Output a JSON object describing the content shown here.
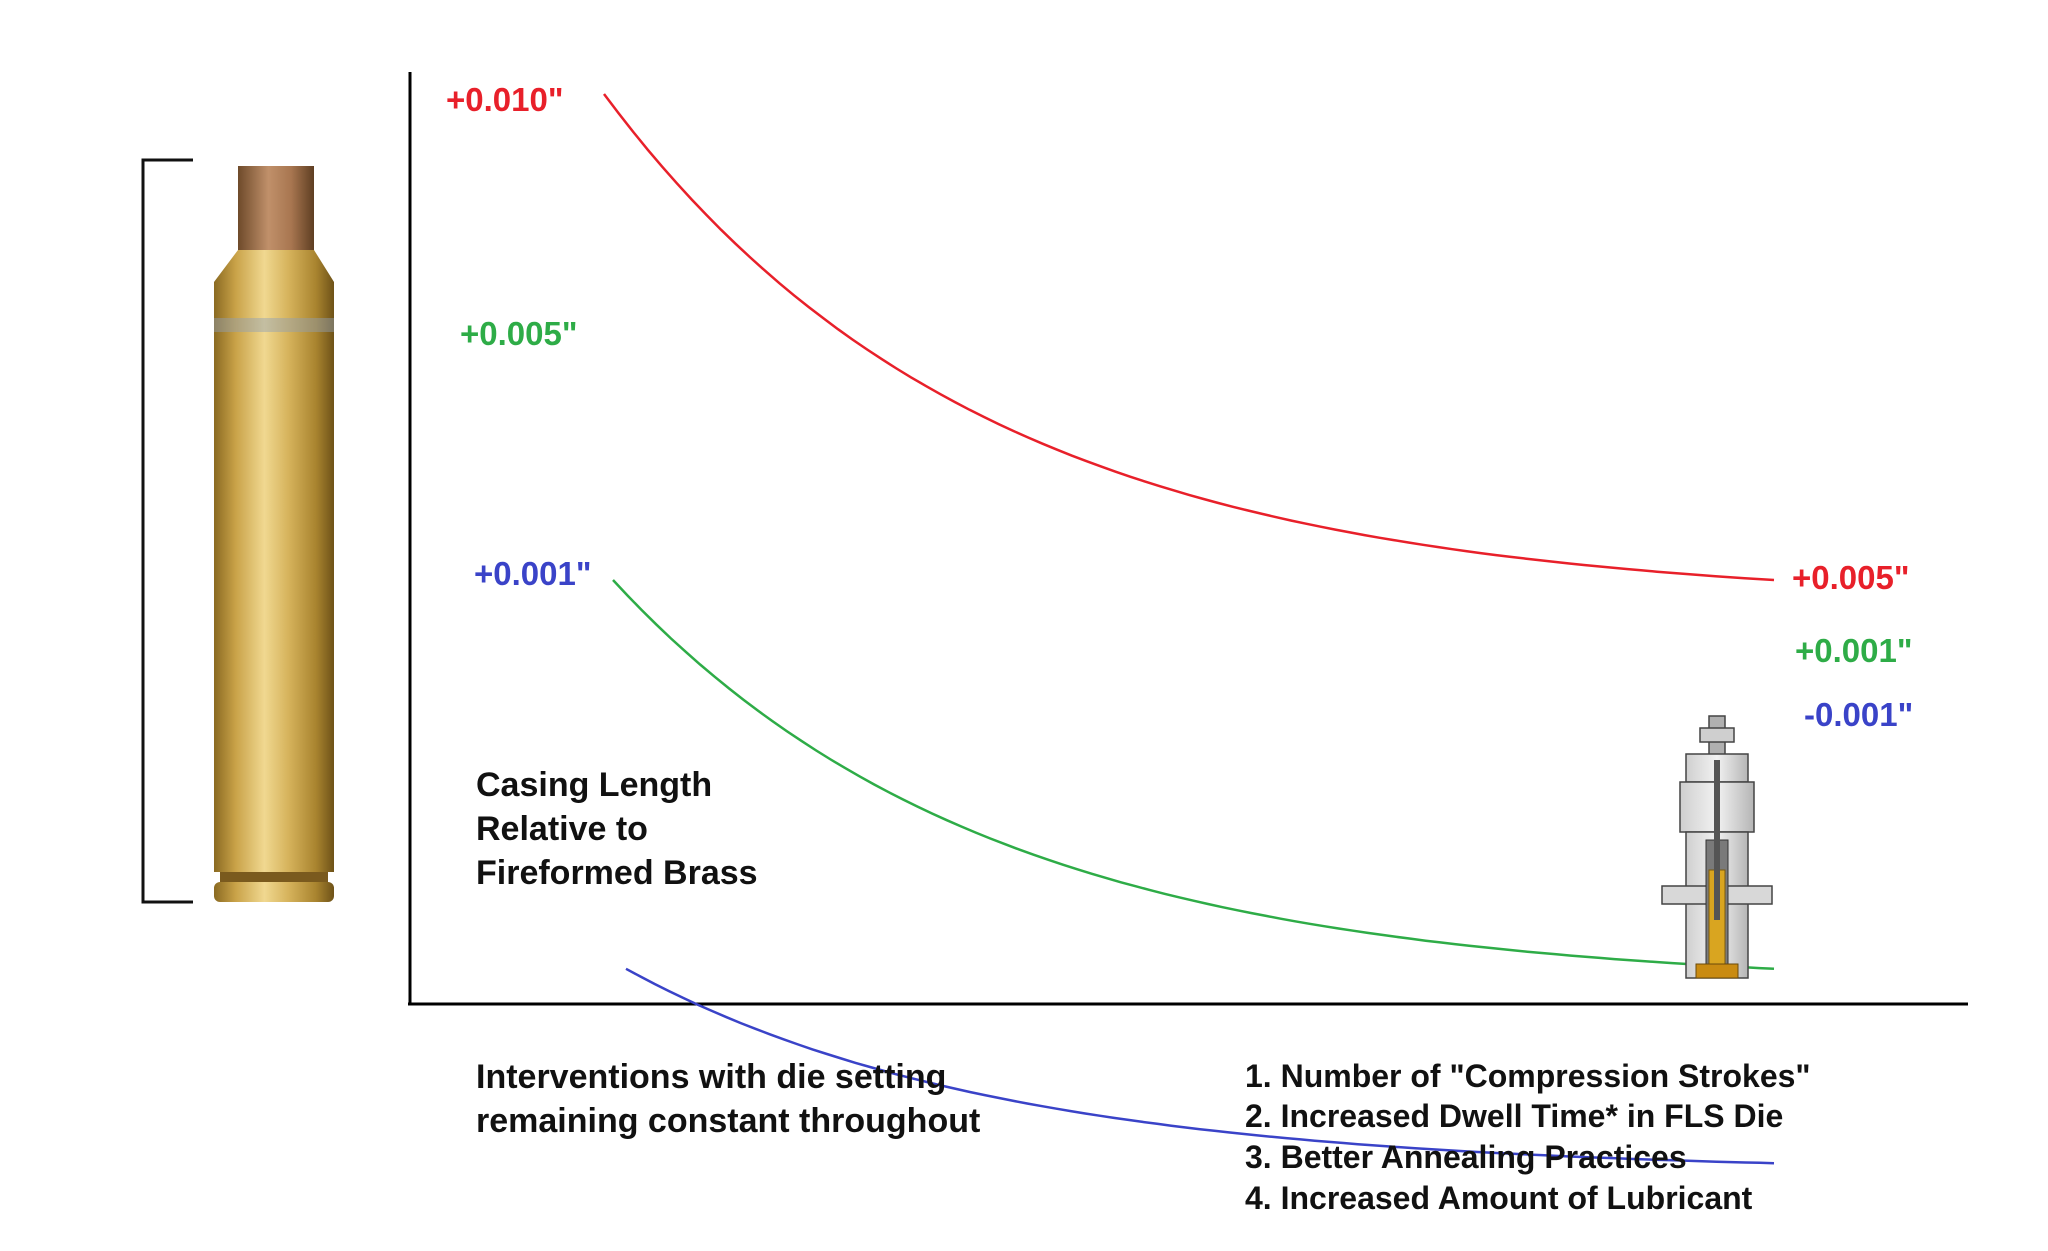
{
  "chart_data": {
    "type": "line",
    "ylabel_lines": [
      "Casing Length",
      "Relative to",
      "Fireformed Brass"
    ],
    "xlabel_lines": [
      "Interventions with die setting",
      "remaining constant throughout"
    ],
    "interventions": [
      "1. Number of \"Compression Strokes\"",
      "2. Increased Dwell Time* in FLS Die",
      "3. Better Annealing Practices",
      "4. Increased Amount of Lubricant"
    ],
    "series": [
      {
        "start_label": "+0.010\"",
        "end_label": "+0.005\"",
        "values": [
          0.01,
          0.005
        ],
        "color": "#e8202a"
      },
      {
        "start_label": "+0.005\"",
        "end_label": "+0.001\"",
        "values": [
          0.005,
          0.001
        ],
        "color": "#2eac47"
      },
      {
        "start_label": "+0.001\"",
        "end_label": "-0.001\"",
        "values": [
          0.001,
          -0.001
        ],
        "color": "#3a43c8"
      }
    ],
    "images": [
      {
        "name": "brass-casing",
        "color": "#c9a248"
      },
      {
        "name": "resizing-die",
        "color": "#9a9a9a"
      }
    ]
  }
}
